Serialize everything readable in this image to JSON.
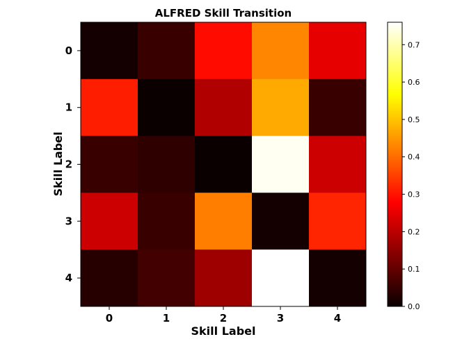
{
  "chart_data": {
    "type": "heatmap",
    "title": "ALFRED Skill Transition",
    "xlabel": "Skill Label",
    "ylabel": "Skill Label",
    "x_categories": [
      "0",
      "1",
      "2",
      "3",
      "4"
    ],
    "y_categories": [
      "0",
      "1",
      "2",
      "3",
      "4"
    ],
    "values": [
      [
        0.01,
        0.05,
        0.29,
        0.43,
        0.24
      ],
      [
        0.31,
        0.0,
        0.18,
        0.47,
        0.05
      ],
      [
        0.05,
        0.04,
        0.0,
        0.75,
        0.21
      ],
      [
        0.21,
        0.05,
        0.42,
        0.01,
        0.32
      ],
      [
        0.03,
        0.06,
        0.16,
        0.76,
        0.01
      ]
    ],
    "colormap": "hot",
    "vmin": 0.0,
    "vmax": 0.76,
    "colorbar_ticks": [
      0.0,
      0.1,
      0.2,
      0.3,
      0.4,
      0.5,
      0.6,
      0.7
    ],
    "colorbar_tick_labels": [
      "0.0",
      "0.1",
      "0.2",
      "0.3",
      "0.4",
      "0.5",
      "0.6",
      "0.7"
    ]
  }
}
